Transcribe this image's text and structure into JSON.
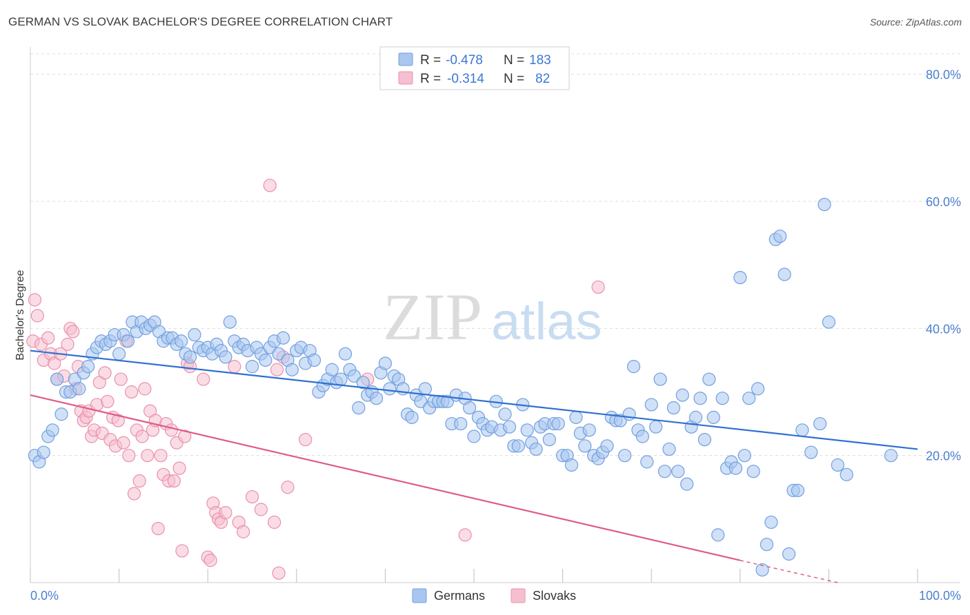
{
  "title": "GERMAN VS SLOVAK BACHELOR'S DEGREE CORRELATION CHART",
  "source": "Source: ZipAtlas.com",
  "watermark": {
    "zip": "ZIP",
    "atlas": "atlas"
  },
  "stats": [
    {
      "r_label": "R =",
      "r_value": "-0.478",
      "n_label": "N =",
      "n_value": "183"
    },
    {
      "r_label": "R =",
      "r_value": "-0.314",
      "n_label": "N =",
      "n_value": "82"
    }
  ],
  "colors": {
    "german_fill": "#a9c6f0",
    "german_stroke": "#6f9fdf",
    "german_line": "#2f6fcf",
    "slovak_fill": "#f6bfd0",
    "slovak_stroke": "#ea8fac",
    "slovak_line": "#e05a88",
    "axis_text": "#4a7fd0",
    "grid": "#dcdcdc"
  },
  "chart_data": {
    "type": "scatter",
    "title": "GERMAN VS SLOVAK BACHELOR'S DEGREE CORRELATION CHART",
    "xlabel": "",
    "ylabel": "Bachelor's Degree",
    "xlim": [
      0,
      100
    ],
    "ylim": [
      0,
      83
    ],
    "x_tick_labels": [
      "0.0%",
      "100.0%"
    ],
    "y_ticks": [
      20,
      40,
      60,
      80
    ],
    "y_tick_labels": [
      "20.0%",
      "40.0%",
      "60.0%",
      "80.0%"
    ],
    "grid": true,
    "legend_position": "bottom-center",
    "series": [
      {
        "name": "Germans",
        "r": -0.478,
        "n": 183,
        "trend": {
          "x0": 0,
          "y0": 36.5,
          "x1": 100,
          "y1": 21.0
        },
        "points": [
          [
            0.5,
            20.0
          ],
          [
            1,
            19.0
          ],
          [
            1.5,
            20.5
          ],
          [
            2,
            23.0
          ],
          [
            2.5,
            24.0
          ],
          [
            3,
            32.0
          ],
          [
            3.5,
            26.5
          ],
          [
            4,
            30.0
          ],
          [
            4.5,
            30.0
          ],
          [
            5,
            32.0
          ],
          [
            5.5,
            30.5
          ],
          [
            6,
            33.0
          ],
          [
            6.5,
            34.0
          ],
          [
            7,
            36.0
          ],
          [
            7.5,
            37.0
          ],
          [
            8,
            38.0
          ],
          [
            8.5,
            37.5
          ],
          [
            9,
            38.0
          ],
          [
            9.5,
            39.0
          ],
          [
            10,
            36.0
          ],
          [
            10.5,
            39.0
          ],
          [
            11,
            38.0
          ],
          [
            11.5,
            41.0
          ],
          [
            12,
            39.5
          ],
          [
            12.5,
            41.0
          ],
          [
            13,
            40.0
          ],
          [
            13.5,
            40.5
          ],
          [
            14,
            41.0
          ],
          [
            14.5,
            39.5
          ],
          [
            15,
            38.0
          ],
          [
            15.5,
            38.5
          ],
          [
            16,
            38.5
          ],
          [
            16.5,
            37.5
          ],
          [
            17,
            38.0
          ],
          [
            17.5,
            36.0
          ],
          [
            18,
            35.5
          ],
          [
            18.5,
            39.0
          ],
          [
            19,
            37.0
          ],
          [
            19.5,
            36.5
          ],
          [
            20,
            37.0
          ],
          [
            20.5,
            36.0
          ],
          [
            21,
            37.5
          ],
          [
            21.5,
            36.5
          ],
          [
            22,
            35.5
          ],
          [
            22.5,
            41.0
          ],
          [
            23,
            38.0
          ],
          [
            23.5,
            37.0
          ],
          [
            24,
            37.5
          ],
          [
            24.5,
            36.5
          ],
          [
            25,
            34.0
          ],
          [
            25.5,
            37.0
          ],
          [
            26,
            36.0
          ],
          [
            26.5,
            35.0
          ],
          [
            27,
            37.0
          ],
          [
            27.5,
            38.0
          ],
          [
            28,
            36.0
          ],
          [
            28.5,
            38.5
          ],
          [
            29,
            35.0
          ],
          [
            29.5,
            33.5
          ],
          [
            30,
            36.5
          ],
          [
            30.5,
            37.0
          ],
          [
            31,
            34.5
          ],
          [
            31.5,
            36.5
          ],
          [
            32,
            35.0
          ],
          [
            32.5,
            30.0
          ],
          [
            33,
            31.0
          ],
          [
            33.5,
            32.0
          ],
          [
            34,
            33.5
          ],
          [
            34.5,
            31.5
          ],
          [
            35,
            32.0
          ],
          [
            35.5,
            36.0
          ],
          [
            36,
            33.5
          ],
          [
            36.5,
            32.5
          ],
          [
            37,
            27.5
          ],
          [
            37.5,
            31.5
          ],
          [
            38,
            29.5
          ],
          [
            38.5,
            30.0
          ],
          [
            39,
            29.0
          ],
          [
            39.5,
            33.0
          ],
          [
            40,
            34.5
          ],
          [
            40.5,
            30.5
          ],
          [
            41,
            32.5
          ],
          [
            41.5,
            32.0
          ],
          [
            42,
            30.5
          ],
          [
            42.5,
            26.5
          ],
          [
            43,
            26.0
          ],
          [
            43.5,
            29.5
          ],
          [
            44,
            28.5
          ],
          [
            44.5,
            30.5
          ],
          [
            45,
            27.5
          ],
          [
            45.5,
            28.5
          ],
          [
            46,
            28.5
          ],
          [
            46.5,
            28.5
          ],
          [
            47,
            28.5
          ],
          [
            47.5,
            25.0
          ],
          [
            48,
            29.5
          ],
          [
            48.5,
            25.0
          ],
          [
            49,
            29.0
          ],
          [
            49.5,
            27.5
          ],
          [
            50,
            23.0
          ],
          [
            50.5,
            26.0
          ],
          [
            51,
            25.0
          ],
          [
            51.5,
            24.0
          ],
          [
            52,
            24.5
          ],
          [
            52.5,
            28.5
          ],
          [
            53,
            24.0
          ],
          [
            53.5,
            26.5
          ],
          [
            54,
            24.5
          ],
          [
            54.5,
            21.5
          ],
          [
            55,
            21.5
          ],
          [
            55.5,
            28.0
          ],
          [
            56,
            24.0
          ],
          [
            56.5,
            22.0
          ],
          [
            57,
            21.0
          ],
          [
            57.5,
            24.5
          ],
          [
            58,
            25.0
          ],
          [
            58.5,
            22.5
          ],
          [
            59,
            25.0
          ],
          [
            59.5,
            25.0
          ],
          [
            60,
            20.0
          ],
          [
            60.5,
            20.0
          ],
          [
            61,
            18.5
          ],
          [
            61.5,
            26.0
          ],
          [
            62,
            23.5
          ],
          [
            62.5,
            21.5
          ],
          [
            63,
            24.0
          ],
          [
            63.5,
            20.0
          ],
          [
            64,
            19.5
          ],
          [
            64.5,
            20.5
          ],
          [
            65,
            21.5
          ],
          [
            65.5,
            26.0
          ],
          [
            66,
            25.5
          ],
          [
            66.5,
            25.5
          ],
          [
            67,
            20.0
          ],
          [
            67.5,
            26.5
          ],
          [
            68,
            34.0
          ],
          [
            68.5,
            24.0
          ],
          [
            69,
            23.0
          ],
          [
            69.5,
            19.0
          ],
          [
            70,
            28.0
          ],
          [
            70.5,
            24.5
          ],
          [
            71,
            32.0
          ],
          [
            71.5,
            17.5
          ],
          [
            72,
            21.0
          ],
          [
            72.5,
            27.5
          ],
          [
            73,
            17.5
          ],
          [
            73.5,
            29.5
          ],
          [
            74,
            15.5
          ],
          [
            74.5,
            24.5
          ],
          [
            75,
            26.0
          ],
          [
            75.5,
            29.0
          ],
          [
            76,
            22.5
          ],
          [
            76.5,
            32.0
          ],
          [
            77,
            26.0
          ],
          [
            77.5,
            7.5
          ],
          [
            78,
            29.0
          ],
          [
            78.5,
            18.0
          ],
          [
            79,
            19.0
          ],
          [
            79.5,
            18.0
          ],
          [
            80,
            48.0
          ],
          [
            80.5,
            20.0
          ],
          [
            81,
            29.0
          ],
          [
            81.5,
            17.5
          ],
          [
            82,
            30.5
          ],
          [
            82.5,
            2.0
          ],
          [
            83,
            6.0
          ],
          [
            83.5,
            9.5
          ],
          [
            84,
            54.0
          ],
          [
            84.5,
            54.5
          ],
          [
            85,
            48.5
          ],
          [
            85.5,
            4.5
          ],
          [
            86,
            14.5
          ],
          [
            86.5,
            14.5
          ],
          [
            87,
            24.0
          ],
          [
            88,
            20.5
          ],
          [
            89,
            25.0
          ],
          [
            89.5,
            59.5
          ],
          [
            90,
            41.0
          ],
          [
            91,
            18.5
          ],
          [
            92,
            17.0
          ],
          [
            97,
            20.0
          ]
        ]
      },
      {
        "name": "Slovaks",
        "r": -0.314,
        "n": 82,
        "trend": {
          "x0": 0,
          "y0": 29.5,
          "x1": 80,
          "y1": 3.5,
          "dash_to_x": 91,
          "dash_to_y": 0
        },
        "points": [
          [
            0.3,
            38.0
          ],
          [
            0.5,
            44.5
          ],
          [
            0.8,
            42.0
          ],
          [
            1.2,
            37.5
          ],
          [
            1.5,
            35.0
          ],
          [
            2,
            38.5
          ],
          [
            2.3,
            36.0
          ],
          [
            2.7,
            34.5
          ],
          [
            3,
            32.0
          ],
          [
            3.4,
            36.0
          ],
          [
            3.8,
            32.5
          ],
          [
            4.2,
            37.5
          ],
          [
            4.5,
            40.0
          ],
          [
            4.8,
            39.5
          ],
          [
            5.1,
            30.5
          ],
          [
            5.4,
            34.0
          ],
          [
            5.7,
            27.0
          ],
          [
            6,
            25.5
          ],
          [
            6.3,
            26.0
          ],
          [
            6.6,
            27.0
          ],
          [
            6.9,
            23.0
          ],
          [
            7.2,
            24.0
          ],
          [
            7.5,
            28.0
          ],
          [
            7.8,
            31.5
          ],
          [
            8.1,
            23.5
          ],
          [
            8.4,
            33.0
          ],
          [
            8.7,
            28.5
          ],
          [
            9,
            22.5
          ],
          [
            9.3,
            26.0
          ],
          [
            9.6,
            21.5
          ],
          [
            9.9,
            25.5
          ],
          [
            10.2,
            32.0
          ],
          [
            10.5,
            22.0
          ],
          [
            10.8,
            38.0
          ],
          [
            11.1,
            20.0
          ],
          [
            11.4,
            30.0
          ],
          [
            11.7,
            14.0
          ],
          [
            12,
            24.0
          ],
          [
            12.3,
            16.0
          ],
          [
            12.6,
            23.0
          ],
          [
            12.9,
            30.5
          ],
          [
            13.2,
            20.0
          ],
          [
            13.5,
            27.0
          ],
          [
            13.8,
            24.0
          ],
          [
            14.1,
            25.5
          ],
          [
            14.4,
            8.5
          ],
          [
            14.7,
            20.0
          ],
          [
            15,
            17.0
          ],
          [
            15.3,
            25.0
          ],
          [
            15.6,
            16.0
          ],
          [
            15.9,
            24.0
          ],
          [
            16.2,
            16.0
          ],
          [
            16.5,
            22.0
          ],
          [
            16.8,
            18.0
          ],
          [
            17.1,
            5.0
          ],
          [
            17.4,
            23.0
          ],
          [
            17.7,
            34.5
          ],
          [
            18,
            34.0
          ],
          [
            19.5,
            32.0
          ],
          [
            20,
            4.0
          ],
          [
            20.3,
            3.5
          ],
          [
            20.6,
            12.5
          ],
          [
            20.9,
            11.0
          ],
          [
            21.2,
            10.0
          ],
          [
            21.5,
            9.5
          ],
          [
            22,
            11.0
          ],
          [
            23,
            34.0
          ],
          [
            23.5,
            9.5
          ],
          [
            24,
            8.0
          ],
          [
            25,
            13.5
          ],
          [
            26,
            11.5
          ],
          [
            27,
            62.5
          ],
          [
            27.5,
            9.5
          ],
          [
            27.8,
            33.5
          ],
          [
            28,
            1.5
          ],
          [
            28.5,
            35.5
          ],
          [
            29,
            15.0
          ],
          [
            31,
            22.5
          ],
          [
            38,
            32.0
          ],
          [
            49,
            7.5
          ],
          [
            64,
            46.5
          ]
        ]
      }
    ]
  }
}
